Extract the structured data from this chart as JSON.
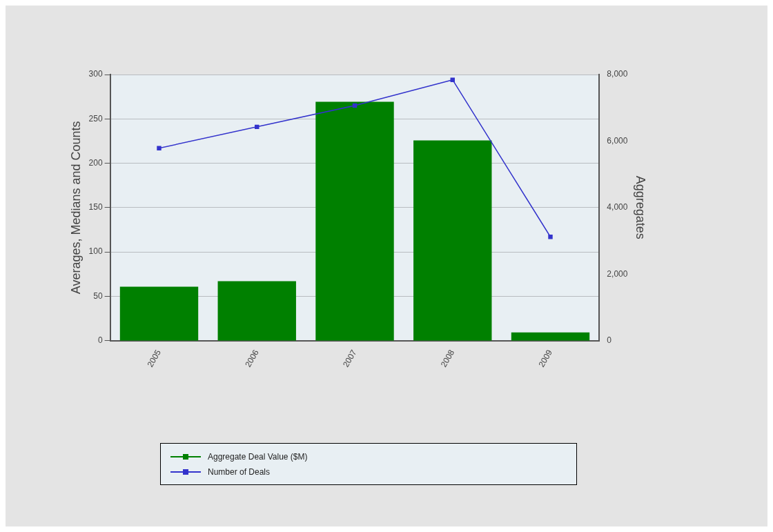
{
  "chart_data": {
    "type": "bar",
    "ylabel": "Averages, Medians and Counts",
    "y2label": "Aggregates",
    "categories": [
      "2005",
      "2006",
      "2007",
      "2008",
      "2009"
    ],
    "series": [
      {
        "name": "Aggregate Deal Value ($M)",
        "color": "#008000",
        "axis": "y2",
        "values": [
          1620,
          1790,
          7180,
          6020,
          250
        ]
      },
      {
        "name": "Number of Deals",
        "color": "#3333cc",
        "type": "line",
        "values": [
          217,
          241,
          265,
          294,
          117
        ]
      }
    ],
    "ylim": [
      0,
      300
    ],
    "yticks": [
      0,
      50,
      100,
      150,
      200,
      250,
      300
    ],
    "y2lim": [
      0,
      8000
    ],
    "y2ticks": [
      {
        "value": 0,
        "label": "0"
      },
      {
        "value": 2000,
        "label": "2,000"
      },
      {
        "value": 4000,
        "label": "4,000"
      },
      {
        "value": 6000,
        "label": "6,000"
      },
      {
        "value": 8000,
        "label": "8,000"
      }
    ],
    "grid": "y",
    "legend": "bottom",
    "marker": "square"
  }
}
